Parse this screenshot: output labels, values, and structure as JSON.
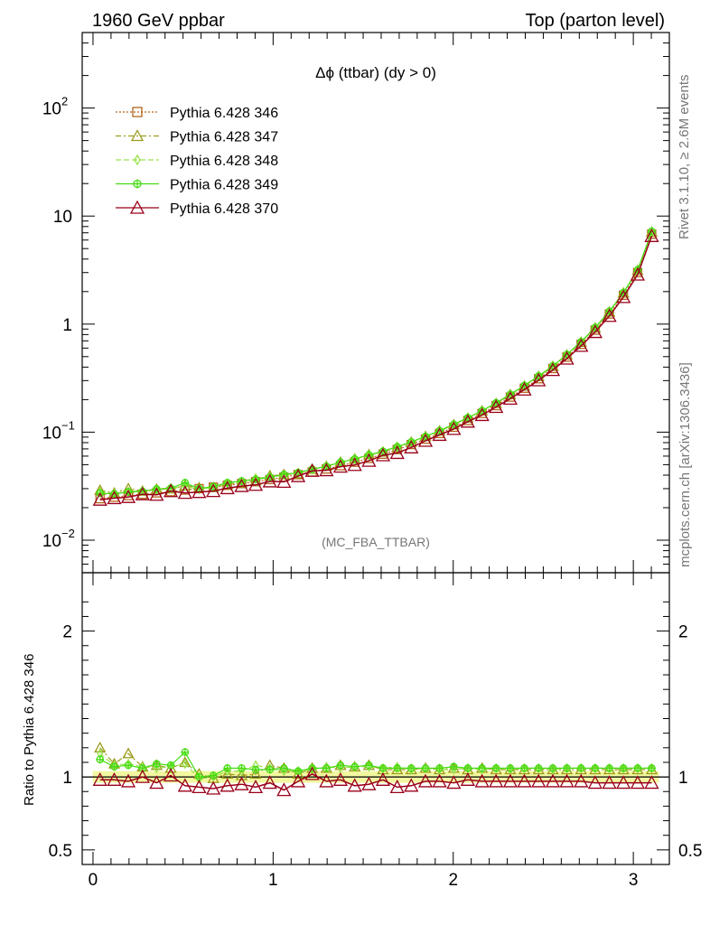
{
  "header": {
    "left": "1960 GeV ppbar",
    "right": "Top (parton level)"
  },
  "side_text": {
    "rivet": "Rivet 3.1.10, ≥ 2.6M events",
    "mcplots": "mcplots.cern.ch [arXiv:1306.3436]"
  },
  "chart_data": [
    {
      "type": "line",
      "title": "Δϕ (ttbar) (dy > 0)",
      "watermark": "(MC_FBA_TTBAR)",
      "xlabel": "",
      "ylabel": "",
      "xlim": [
        -0.06,
        3.2
      ],
      "ylim": [
        0.005,
        500
      ],
      "yscale": "log",
      "x_ticks": [
        "0",
        "1",
        "2",
        "3"
      ],
      "y_ticks": [
        "10^-2",
        "10^-1",
        "1",
        "10",
        "10^2"
      ],
      "legend_position": "top-left",
      "x": [
        0.039,
        0.118,
        0.196,
        0.275,
        0.353,
        0.432,
        0.511,
        0.589,
        0.668,
        0.746,
        0.825,
        0.903,
        0.982,
        1.06,
        1.139,
        1.217,
        1.296,
        1.374,
        1.453,
        1.532,
        1.61,
        1.689,
        1.767,
        1.846,
        1.924,
        2.003,
        2.081,
        2.16,
        2.238,
        2.317,
        2.395,
        2.474,
        2.553,
        2.631,
        2.71,
        2.788,
        2.867,
        2.945,
        3.024,
        3.102
      ],
      "series": [
        {
          "name": "Pythia 6.428 346",
          "color": "#b5651d",
          "marker": "square",
          "dash": "2,2",
          "values": [
            0.0242,
            0.025,
            0.0259,
            0.0266,
            0.0274,
            0.0281,
            0.0291,
            0.03,
            0.031,
            0.0322,
            0.0334,
            0.0348,
            0.0364,
            0.0383,
            0.0404,
            0.0428,
            0.0456,
            0.0489,
            0.0527,
            0.0572,
            0.0625,
            0.069,
            0.0768,
            0.0861,
            0.0972,
            0.111,
            0.128,
            0.149,
            0.176,
            0.211,
            0.255,
            0.312,
            0.388,
            0.495,
            0.65,
            0.88,
            1.24,
            1.85,
            3.0,
            6.8
          ]
        },
        {
          "name": "Pythia 6.428 347",
          "color": "#9b9b1c",
          "marker": "triangle",
          "dash": "6,3,2,3",
          "values": [
            0.029,
            0.0273,
            0.03,
            0.0285,
            0.0296,
            0.0298,
            0.032,
            0.0306,
            0.0307,
            0.0328,
            0.0339,
            0.0354,
            0.0394,
            0.0404,
            0.0412,
            0.0454,
            0.0484,
            0.0527,
            0.0565,
            0.0619,
            0.0655,
            0.0722,
            0.0808,
            0.0912,
            0.1025,
            0.1171,
            0.1347,
            0.1574,
            0.1843,
            0.222,
            0.267,
            0.327,
            0.406,
            0.518,
            0.68,
            0.921,
            1.297,
            1.94,
            3.14,
            7.11
          ]
        },
        {
          "name": "Pythia 6.428 348",
          "color": "#99e34a",
          "marker": "diamond",
          "dash": "6,3",
          "values": [
            0.028,
            0.027,
            0.0282,
            0.0286,
            0.0291,
            0.03,
            0.0316,
            0.0296,
            0.0309,
            0.0336,
            0.0349,
            0.0376,
            0.0385,
            0.0398,
            0.042,
            0.0449,
            0.0487,
            0.052,
            0.0565,
            0.061,
            0.0665,
            0.0737,
            0.0809,
            0.091,
            0.1025,
            0.1168,
            0.1359,
            0.1572,
            0.187,
            0.222,
            0.2694,
            0.33,
            0.409,
            0.523,
            0.686,
            0.929,
            1.311,
            1.953,
            3.17,
            7.18
          ]
        },
        {
          "name": "Pythia 6.428 349",
          "color": "#44dd11",
          "marker": "circle-plus",
          "dash": "",
          "values": [
            0.0272,
            0.0268,
            0.028,
            0.0283,
            0.0298,
            0.0303,
            0.034,
            0.03,
            0.0314,
            0.034,
            0.0353,
            0.0365,
            0.0384,
            0.0406,
            0.0422,
            0.0454,
            0.0482,
            0.0527,
            0.0564,
            0.0615,
            0.0665,
            0.0731,
            0.0812,
            0.0913,
            0.1032,
            0.1182,
            0.136,
            0.158,
            0.1865,
            0.224,
            0.27,
            0.331,
            0.41,
            0.524,
            0.688,
            0.932,
            1.313,
            1.959,
            3.18,
            7.21
          ]
        },
        {
          "name": "Pythia 6.428 370",
          "color": "#99001a",
          "marker": "triangle",
          "dash": "",
          "values": [
            0.0237,
            0.0245,
            0.0251,
            0.0266,
            0.0263,
            0.0284,
            0.0274,
            0.0279,
            0.0285,
            0.0303,
            0.0317,
            0.0325,
            0.035,
            0.0347,
            0.0392,
            0.0438,
            0.0444,
            0.0479,
            0.0497,
            0.0543,
            0.0611,
            0.0642,
            0.0722,
            0.0831,
            0.0943,
            0.107,
            0.125,
            0.144,
            0.171,
            0.204,
            0.248,
            0.302,
            0.376,
            0.479,
            0.629,
            0.845,
            1.19,
            1.78,
            2.87,
            6.53
          ]
        }
      ]
    },
    {
      "type": "line",
      "title": "",
      "xlabel": "",
      "ylabel": "Ratio to Pythia 6.428 346",
      "xlim": [
        -0.06,
        3.2
      ],
      "ylim": [
        0.4,
        2.4
      ],
      "x_ticks": [
        "0",
        "1",
        "2",
        "3"
      ],
      "y_ticks": [
        "0.5",
        "1",
        "2"
      ],
      "x": [
        0.039,
        0.118,
        0.196,
        0.275,
        0.353,
        0.432,
        0.511,
        0.589,
        0.668,
        0.746,
        0.825,
        0.903,
        0.982,
        1.06,
        1.139,
        1.217,
        1.296,
        1.374,
        1.453,
        1.532,
        1.61,
        1.689,
        1.767,
        1.846,
        1.924,
        2.003,
        2.081,
        2.16,
        2.238,
        2.317,
        2.395,
        2.474,
        2.553,
        2.631,
        2.71,
        2.788,
        2.867,
        2.945,
        3.024,
        3.102
      ],
      "band": {
        "lower": 0.96,
        "upper": 1.04
      },
      "series": [
        {
          "name": "Pythia 6.428 346",
          "color": "#b5651d",
          "values": [
            1,
            1,
            1,
            1,
            1,
            1,
            1,
            1,
            1,
            1,
            1,
            1,
            1,
            1,
            1,
            1,
            1,
            1,
            1,
            1,
            1,
            1,
            1,
            1,
            1,
            1,
            1,
            1,
            1,
            1,
            1,
            1,
            1,
            1,
            1,
            1,
            1,
            1,
            1,
            1
          ]
        },
        {
          "name": "Pythia 6.428 347",
          "color": "#9b9b1c",
          "values": [
            1.2,
            1.09,
            1.16,
            1.07,
            1.08,
            1.06,
            1.1,
            1.02,
            0.99,
            1.02,
            1.01,
            1.02,
            1.08,
            1.06,
            1.02,
            1.06,
            1.06,
            1.08,
            1.07,
            1.08,
            1.05,
            1.05,
            1.05,
            1.06,
            1.05,
            1.06,
            1.05,
            1.06,
            1.05,
            1.05,
            1.05,
            1.05,
            1.05,
            1.05,
            1.05,
            1.05,
            1.05,
            1.05,
            1.05,
            1.05
          ]
        },
        {
          "name": "Pythia 6.428 348",
          "color": "#99e34a",
          "values": [
            1.16,
            1.08,
            1.09,
            1.07,
            1.06,
            1.07,
            1.09,
            0.99,
            1.0,
            1.04,
            1.04,
            1.08,
            1.06,
            1.04,
            1.04,
            1.05,
            1.07,
            1.06,
            1.07,
            1.07,
            1.06,
            1.07,
            1.05,
            1.06,
            1.05,
            1.05,
            1.06,
            1.05,
            1.06,
            1.05,
            1.06,
            1.06,
            1.05,
            1.06,
            1.06,
            1.06,
            1.06,
            1.06,
            1.06,
            1.06
          ]
        },
        {
          "name": "Pythia 6.428 349",
          "color": "#44dd11",
          "values": [
            1.12,
            1.07,
            1.08,
            1.06,
            1.09,
            1.08,
            1.17,
            1.0,
            1.01,
            1.06,
            1.06,
            1.05,
            1.05,
            1.06,
            1.04,
            1.06,
            1.06,
            1.08,
            1.07,
            1.08,
            1.06,
            1.06,
            1.06,
            1.06,
            1.06,
            1.07,
            1.06,
            1.06,
            1.06,
            1.06,
            1.06,
            1.06,
            1.06,
            1.06,
            1.06,
            1.06,
            1.06,
            1.06,
            1.06,
            1.06
          ]
        },
        {
          "name": "Pythia 6.428 370",
          "color": "#99001a",
          "values": [
            0.98,
            0.98,
            0.97,
            1.0,
            0.96,
            1.01,
            0.94,
            0.93,
            0.92,
            0.94,
            0.95,
            0.93,
            0.96,
            0.91,
            0.97,
            1.02,
            0.97,
            0.98,
            0.94,
            0.95,
            0.98,
            0.93,
            0.94,
            0.97,
            0.97,
            0.96,
            0.98,
            0.97,
            0.97,
            0.97,
            0.97,
            0.97,
            0.97,
            0.97,
            0.97,
            0.96,
            0.96,
            0.96,
            0.96,
            0.96
          ]
        }
      ]
    }
  ]
}
